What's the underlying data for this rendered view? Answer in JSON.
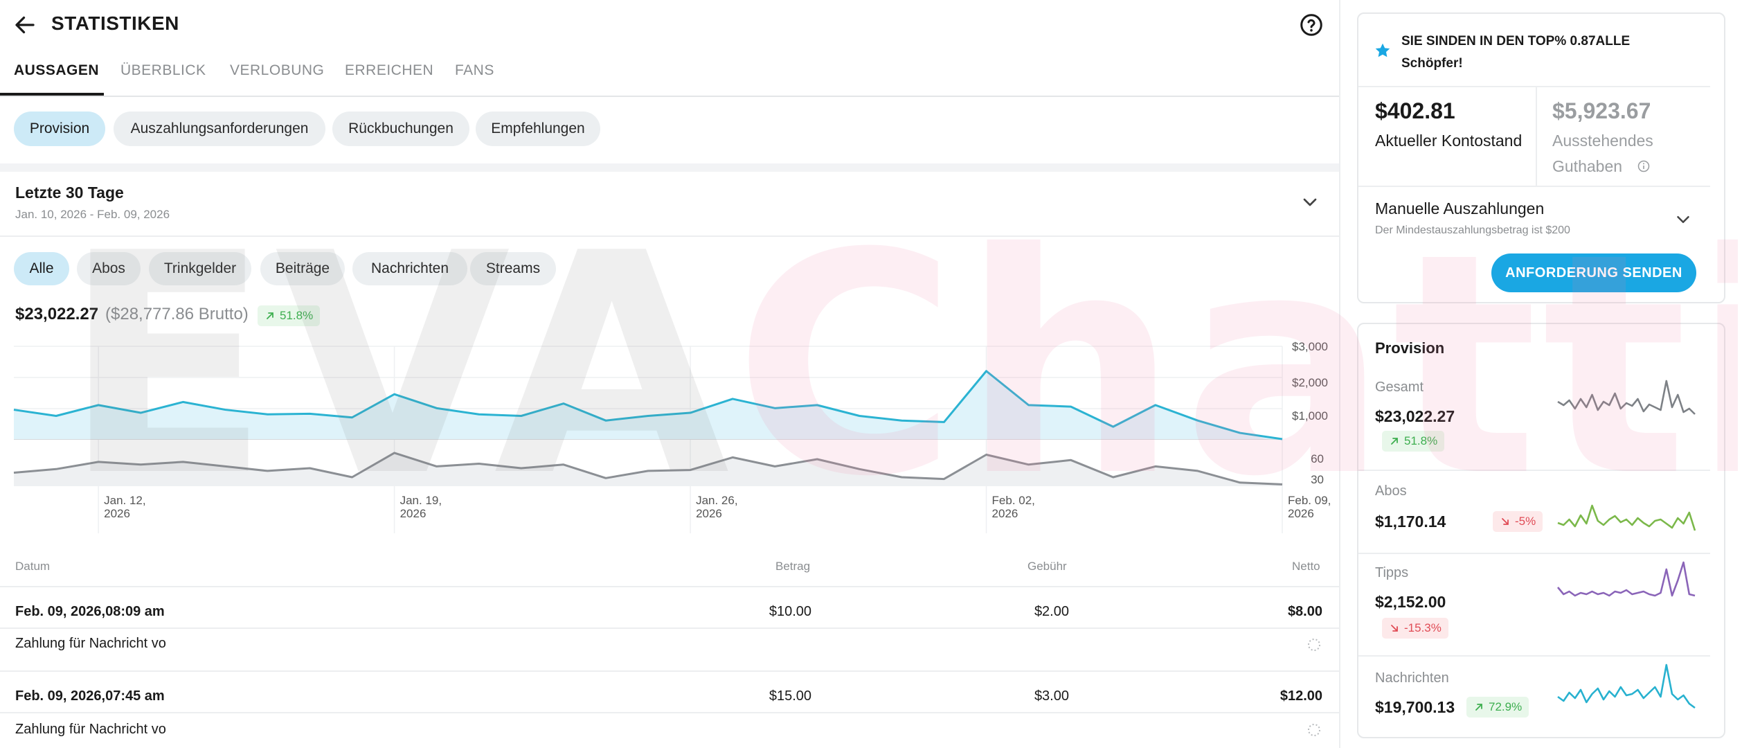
{
  "header": {
    "title": "STATISTIKEN"
  },
  "tabs": [
    {
      "label": "AUSSAGEN",
      "active": true
    },
    {
      "label": "ÜBERBLICK"
    },
    {
      "label": "VERLOBUNG"
    },
    {
      "label": "ERREICHEN"
    },
    {
      "label": "FANS"
    }
  ],
  "subtabs": [
    "Provision",
    "Auszahlungsanforderungen",
    "Rückbuchungen",
    "Empfehlungen"
  ],
  "range": {
    "title": "Letzte 30 Tage",
    "dates": "Jan. 10, 2026 - Feb. 09, 2026"
  },
  "filters": [
    "Alle",
    "Abos",
    "Trinkgelder",
    "Beiträge",
    "Nachrichten",
    "Streams"
  ],
  "summary": {
    "net": "$23,022.27",
    "gross": "($28,777.86 Brutto)",
    "change": "51.8%"
  },
  "chart_data": {
    "type": "area",
    "x": [
      "Jan. 10",
      "Jan. 11",
      "Jan. 12",
      "Jan. 13",
      "Jan. 14",
      "Jan. 15",
      "Jan. 16",
      "Jan. 17",
      "Jan. 18",
      "Jan. 19",
      "Jan. 20",
      "Jan. 21",
      "Jan. 22",
      "Jan. 23",
      "Jan. 24",
      "Jan. 25",
      "Jan. 26",
      "Jan. 27",
      "Jan. 28",
      "Jan. 29",
      "Jan. 30",
      "Jan. 31",
      "Feb. 01",
      "Feb. 02",
      "Feb. 03",
      "Feb. 04",
      "Feb. 05",
      "Feb. 06",
      "Feb. 07",
      "Feb. 08",
      "Feb. 09"
    ],
    "series": [
      {
        "values": [
          950,
          750,
          1100,
          850,
          1200,
          950,
          800,
          820,
          700,
          1450,
          1000,
          800,
          750,
          1150,
          600,
          750,
          850,
          1300,
          1000,
          1100,
          750,
          600,
          550,
          2200,
          1100,
          1050,
          400,
          1100,
          600,
          200,
          0
        ]
      },
      {
        "values": [
          43,
          47,
          55,
          52,
          55,
          50,
          45,
          48,
          38,
          65,
          50,
          53,
          48,
          52,
          37,
          45,
          46,
          60,
          50,
          58,
          47,
          38,
          36,
          63,
          52,
          57,
          38,
          50,
          45,
          32,
          30
        ]
      }
    ],
    "x_ticks": [
      {
        "l1": "Jan. 12,",
        "l2": "2026"
      },
      {
        "l1": "Jan. 19,",
        "l2": "2026"
      },
      {
        "l1": "Jan. 26,",
        "l2": "2026"
      },
      {
        "l1": "Feb. 02,",
        "l2": "2026"
      },
      {
        "l1": "Feb. 09,",
        "l2": "2026"
      }
    ],
    "y_ticks_top": [
      "$3,000",
      "$2,000",
      "$1,000"
    ],
    "y_ticks_bottom": [
      "60",
      "30"
    ],
    "colors": {
      "top": "#2bb3d2",
      "top_fill": "#dff3fa",
      "bottom": "#8b8f94",
      "bottom_fill": "#eef0f2"
    }
  },
  "table": {
    "headers": [
      "Datum",
      "Betrag",
      "Gebühr",
      "Netto"
    ],
    "rows": [
      {
        "date": "Feb. 09, 2026,08:09 am",
        "amount": "$10.00",
        "fee": "$2.00",
        "net": "$8.00",
        "desc": "Zahlung für Nachricht vo"
      },
      {
        "date": "Feb. 09, 2026,07:45 am",
        "amount": "$15.00",
        "fee": "$3.00",
        "net": "$12.00",
        "desc": "Zahlung für Nachricht vo"
      }
    ]
  },
  "right": {
    "top_text": "SIE SINDEN IN DEN TOP% 0.87ALLE Schöpfer!",
    "balance": {
      "value": "$402.81",
      "label": "Aktueller Kontostand"
    },
    "pending": {
      "value": "$5,923.67",
      "label": "Ausstehendes Guthaben"
    },
    "manual": {
      "title": "Manuelle Auszahlungen",
      "sub": "Der Mindestauszahlungsbetrag ist $200"
    },
    "send_button": "ANFORDERUNG SENDEN",
    "provision_title": "Provision",
    "stats": [
      {
        "label": "Gesamt",
        "value": "$23,022.27",
        "change": "51.8%",
        "dir": "up",
        "color": "#7d8186"
      },
      {
        "label": "Abos",
        "value": "$1,170.14",
        "change": "-5%",
        "dir": "down",
        "color": "#7bb84a"
      },
      {
        "label": "Tipps",
        "value": "$2,152.00",
        "change": "-15.3%",
        "dir": "down",
        "color": "#8a64b8"
      },
      {
        "label": "Nachrichten",
        "value": "$19,700.13",
        "change": "72.9%",
        "dir": "up",
        "color": "#27b1cf"
      }
    ]
  },
  "watermark": "EVAChatting"
}
